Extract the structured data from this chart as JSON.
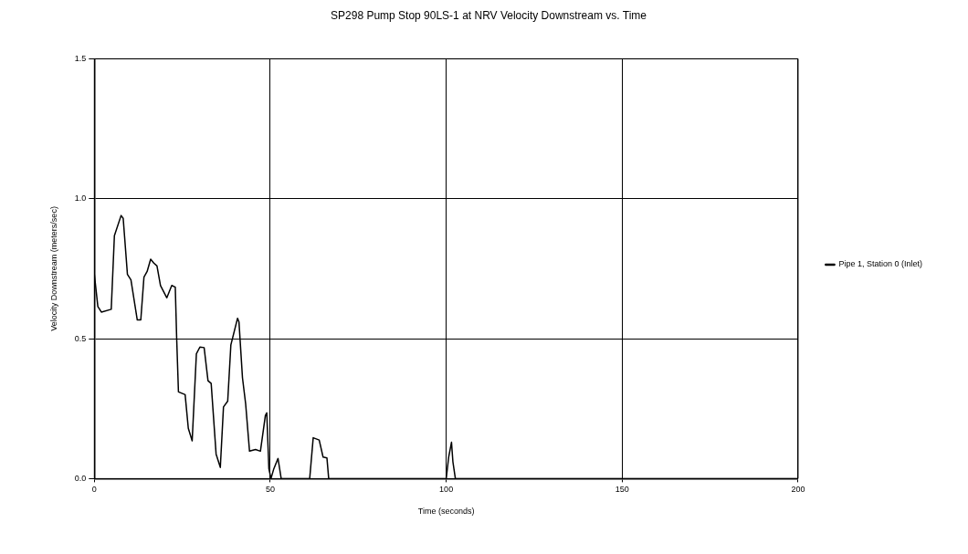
{
  "chart_data": {
    "type": "line",
    "title": "SP298 Pump Stop 90LS-1 at NRV Velocity Downstream vs. Time",
    "xlabel": "Time (seconds)",
    "ylabel": "Velocity Downstream (meters/sec)",
    "xlim": [
      0,
      200
    ],
    "xticks": [
      0,
      50,
      100,
      150,
      200
    ],
    "ylim": [
      0,
      1.5
    ],
    "yticks": [
      {
        "value": 0,
        "label": "0.0"
      },
      {
        "value": 0.5,
        "label": "0.5"
      },
      {
        "value": 1,
        "label": "1.0"
      },
      {
        "value": 1.5,
        "label": "1.5"
      }
    ],
    "grid": true,
    "legend": "right",
    "marker": "none",
    "line_style": "solid",
    "series": [
      {
        "name": "Pipe 1, Station 0 (Inlet)",
        "color": "#000000",
        "x": [
          0,
          1,
          2,
          4.8,
          5.7,
          7.6,
          8.2,
          9.4,
          10.4,
          12.2,
          13.2,
          14.1,
          15,
          16,
          16.9,
          17.8,
          18.8,
          20.6,
          22,
          23,
          23.4,
          23.9,
          25.8,
          26.7,
          27.8,
          29,
          30,
          31.2,
          32.3,
          33.2,
          34.6,
          35.8,
          36.7,
          37.9,
          38.8,
          40.7,
          41.1,
          42.1,
          43,
          44.1,
          45.8,
          47.2,
          48.6,
          49,
          49.6,
          50.2,
          51,
          52.2,
          53.1,
          61.2,
          62.2,
          63.9,
          65,
          66.1,
          66.6,
          100,
          100.7,
          101.5,
          101.9,
          102.6,
          200
        ],
        "values": [
          0.73,
          0.615,
          0.595,
          0.605,
          0.868,
          0.94,
          0.93,
          0.73,
          0.71,
          0.567,
          0.567,
          0.72,
          0.74,
          0.784,
          0.77,
          0.76,
          0.69,
          0.646,
          0.69,
          0.684,
          0.5,
          0.31,
          0.3,
          0.18,
          0.135,
          0.446,
          0.47,
          0.468,
          0.35,
          0.34,
          0.088,
          0.04,
          0.256,
          0.277,
          0.478,
          0.573,
          0.56,
          0.36,
          0.267,
          0.098,
          0.104,
          0.098,
          0.225,
          0.235,
          0.035,
          0,
          0.035,
          0.072,
          0,
          0,
          0.146,
          0.138,
          0.077,
          0.074,
          0,
          0,
          0.077,
          0.13,
          0.06,
          0,
          0
        ]
      }
    ]
  }
}
